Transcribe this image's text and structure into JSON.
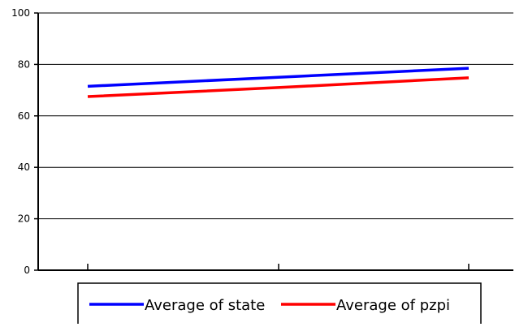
{
  "chart_data": {
    "type": "line",
    "x": [
      1,
      2,
      3
    ],
    "series": [
      {
        "name": "Average of state",
        "values": [
          71.5,
          75.0,
          78.5
        ],
        "color": "#0000ff"
      },
      {
        "name": "Average of pzpi",
        "values": [
          67.5,
          71.0,
          74.8
        ],
        "color": "#ff0000"
      }
    ],
    "ylim": [
      0,
      100
    ],
    "yticks": [
      "0",
      "20",
      "40",
      "60",
      "80",
      "100"
    ],
    "grid": true,
    "legend": "bottom"
  }
}
